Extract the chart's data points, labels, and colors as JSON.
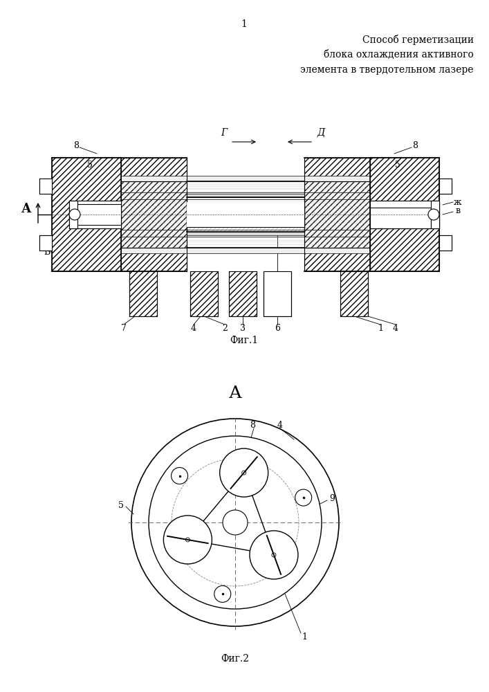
{
  "title_page_num": "1",
  "title_text": [
    "Способ герметизации",
    "блока охлаждения активного",
    "элемента в твердотельном лазере"
  ],
  "fig1_caption": "Фиг.1",
  "fig2_caption": "Фиг.2",
  "bg_color": "#ffffff",
  "line_color": "#000000"
}
